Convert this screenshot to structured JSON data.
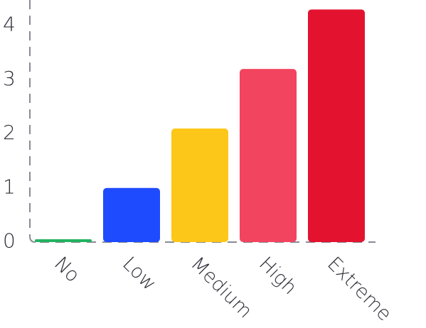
{
  "chart_data": {
    "type": "bar",
    "categories": [
      "No",
      "Low",
      "Medium",
      "High",
      "Extreme"
    ],
    "values": [
      0.05,
      1.0,
      2.1,
      3.2,
      4.3
    ],
    "colors": [
      "#22b35f",
      "#1f4bff",
      "#fcc718",
      "#f2445e",
      "#e3132f"
    ],
    "ylim": [
      0,
      4.4
    ],
    "yticks": [
      "0",
      "1",
      "2",
      "3",
      "4"
    ],
    "xlabel": "",
    "ylabel": "",
    "title": "",
    "grid": false,
    "axis_color": "#8a8a96",
    "axis_style": "dashed"
  }
}
